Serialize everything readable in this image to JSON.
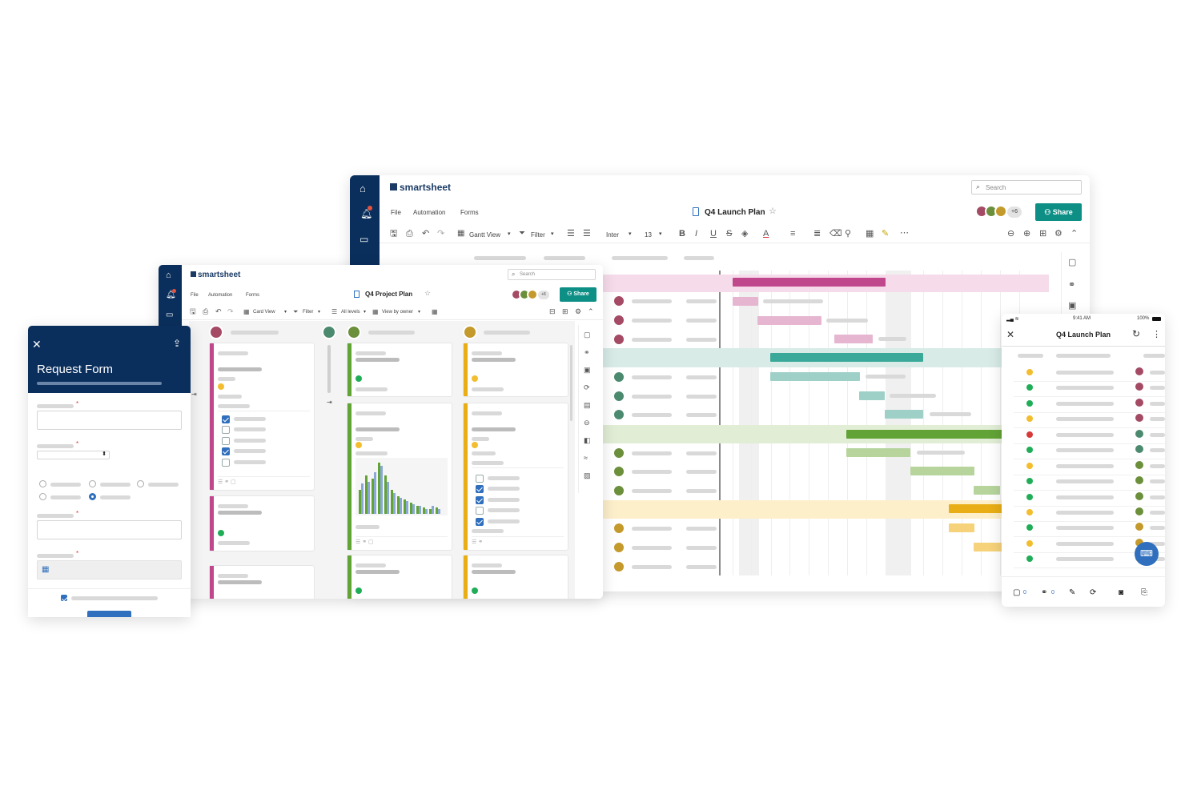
{
  "main_window": {
    "brand": "smartsheet",
    "search_placeholder": "Search",
    "menu": [
      "File",
      "Automation",
      "Forms"
    ],
    "title": "Q4 Launch Plan",
    "avatar_more": "+6",
    "share_label": "Share",
    "toolbar": {
      "view": "Gantt View",
      "filter": "Filter",
      "font": "Inter",
      "font_size": "13"
    }
  },
  "board_window": {
    "brand": "smartsheet",
    "search_placeholder": "Search",
    "menu": [
      "File",
      "Automation",
      "Forms"
    ],
    "title": "Q4 Project Plan",
    "avatar_more": "+6",
    "share_label": "Share",
    "toolbar": {
      "view": "Card View",
      "filter": "Filter",
      "levels": "All levels",
      "view_by": "View by owner"
    }
  },
  "form": {
    "title": "Request Form"
  },
  "mobile": {
    "time": "9:41 AM",
    "battery": "100%",
    "title": "Q4 Launch Plan",
    "comments_count": "0",
    "attachments_count": "0"
  },
  "colors": {
    "navy": "#0b2f5c",
    "share_green": "#0d8f86",
    "magenta": "#c0478b",
    "teal": "#3aa99a",
    "green": "#62a336",
    "gold": "#e9ae15",
    "status_yellow": "#f3bd2e",
    "status_green": "#1fae57",
    "status_red": "#d83a3a"
  }
}
